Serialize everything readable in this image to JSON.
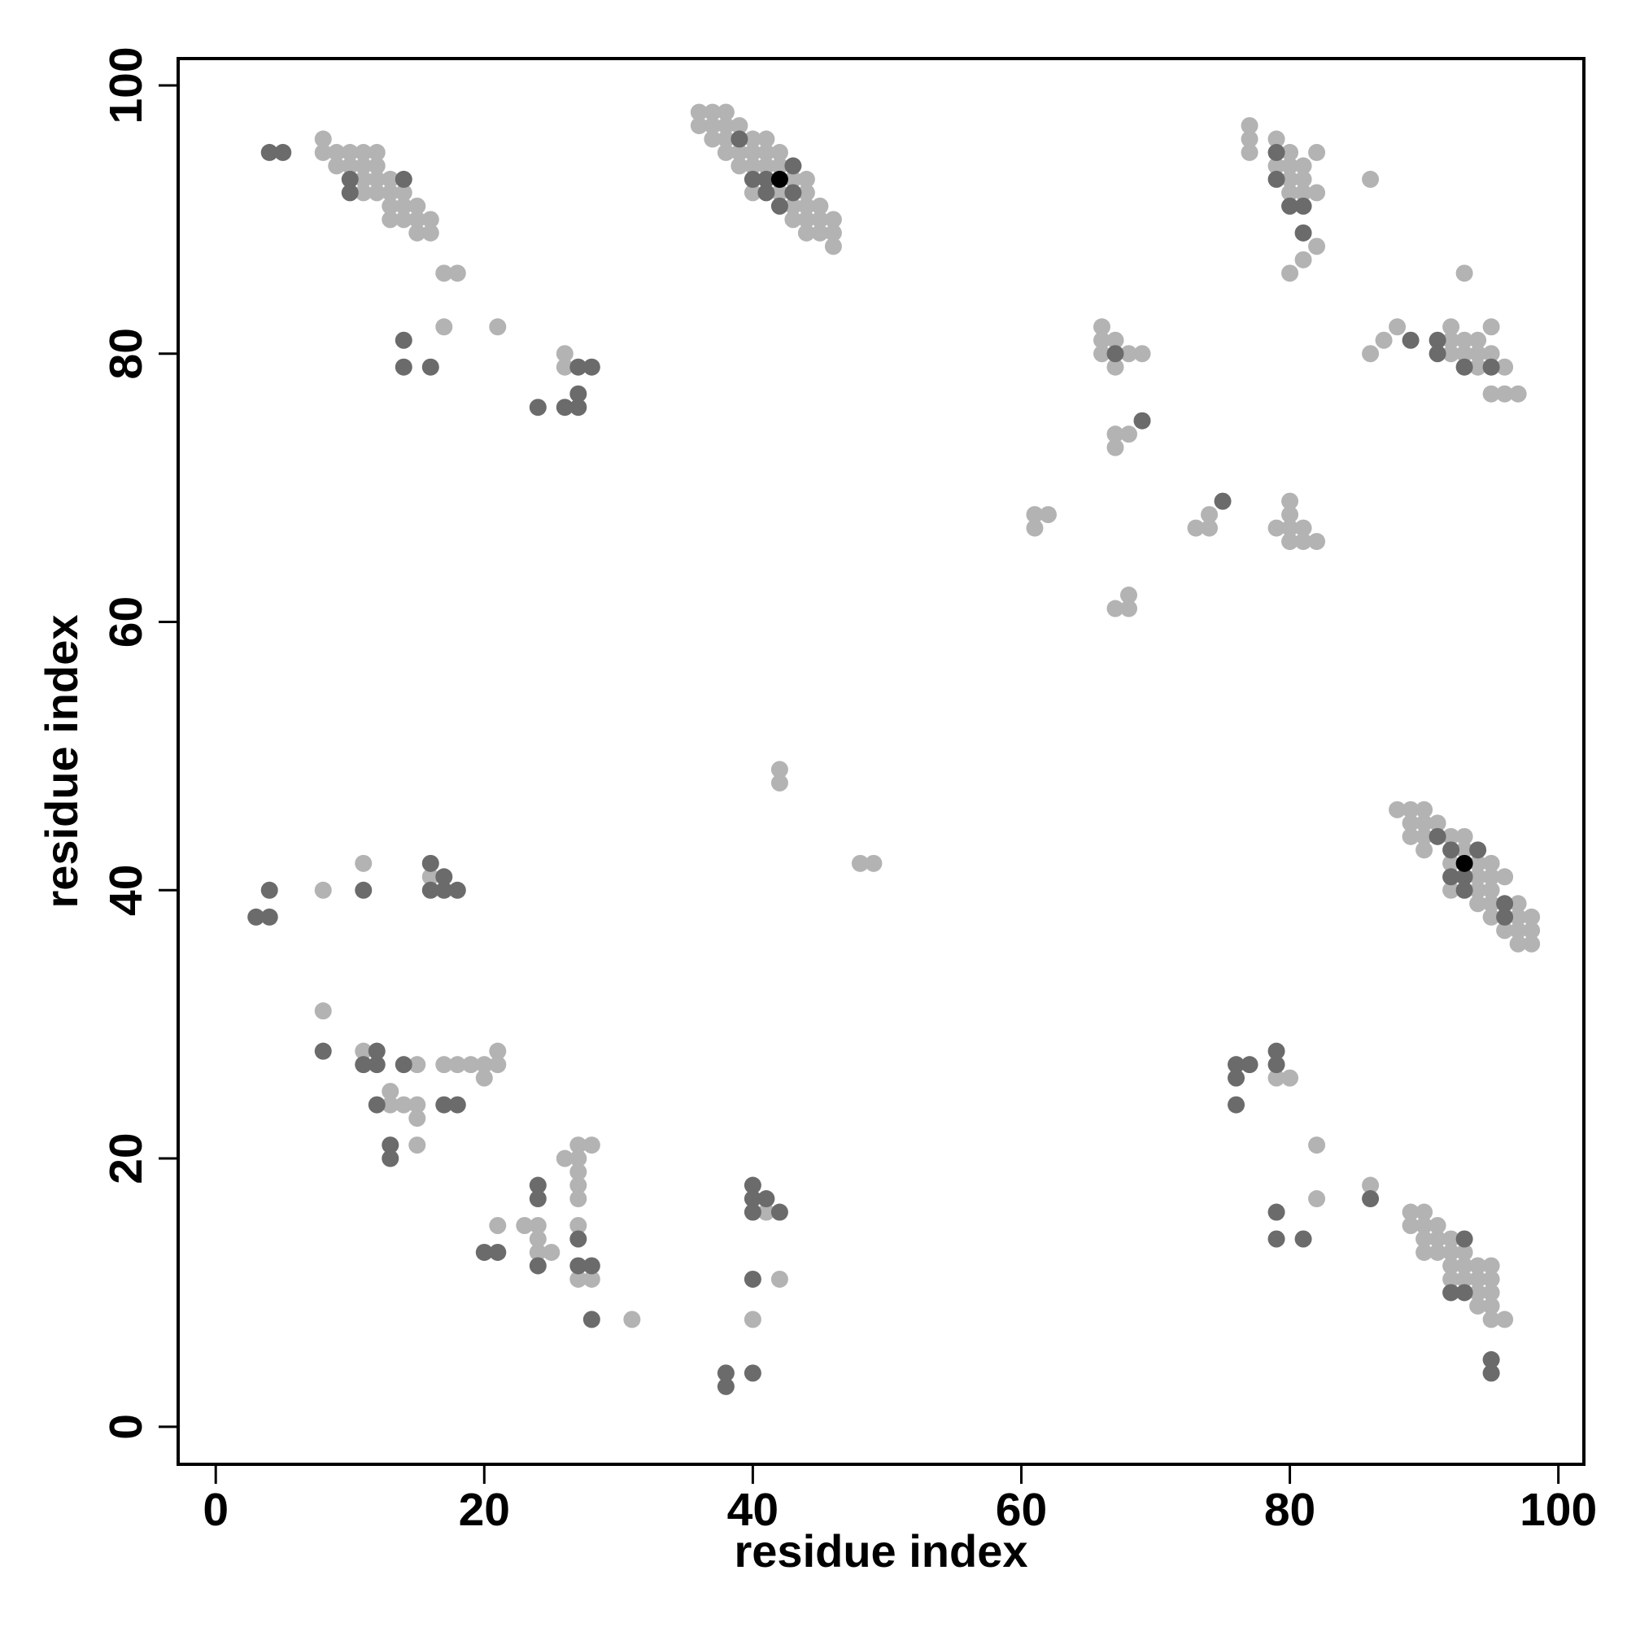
{
  "chart_data": {
    "type": "scatter",
    "x_label": "residue index",
    "y_label": "residue index",
    "xlim": [
      -2.8,
      101.9
    ],
    "ylim": [
      -2.8,
      102
    ],
    "xticks": [
      0,
      20,
      40,
      60,
      80,
      100
    ],
    "yticks": [
      0,
      20,
      40,
      60,
      80,
      100
    ],
    "grid": false,
    "series": [
      {
        "color": "#b3b3b3",
        "x": [
          8,
          8,
          9,
          10,
          11,
          12,
          9,
          10,
          11,
          12,
          11,
          12,
          13,
          11,
          12,
          13,
          14,
          13,
          14,
          15,
          13,
          14,
          15,
          16,
          15,
          16,
          17,
          18,
          17,
          21,
          26,
          26,
          36,
          37,
          38,
          36,
          37,
          38,
          39,
          37,
          38,
          40,
          41,
          38,
          39,
          40,
          41,
          42,
          39,
          40,
          41,
          42,
          43,
          44,
          40,
          42,
          44,
          43,
          44,
          45,
          43,
          44,
          45,
          46,
          44,
          45,
          46,
          46,
          77,
          77,
          77,
          79,
          80,
          80,
          81,
          79,
          80,
          81,
          80,
          81,
          82,
          82,
          81,
          80,
          82,
          86,
          93,
          86,
          87,
          88,
          92,
          92,
          93,
          94,
          92,
          93,
          94,
          95,
          95,
          94,
          96,
          95,
          96,
          97,
          66,
          66,
          67,
          66,
          68,
          69,
          67,
          67,
          68,
          67,
          61,
          62,
          61,
          73,
          74,
          74,
          79,
          80,
          80,
          80,
          81,
          80,
          81,
          82,
          67,
          68,
          68,
          42,
          42,
          48,
          49,
          88,
          89,
          90,
          89,
          90,
          91,
          89,
          90,
          92,
          93,
          90,
          93,
          92,
          94,
          95,
          94,
          95,
          96,
          92,
          94,
          95,
          94,
          95,
          97,
          95,
          97,
          98,
          96,
          97,
          98,
          97,
          98,
          8,
          11,
          16,
          8,
          15,
          17,
          18,
          19,
          20,
          21,
          21,
          20,
          13,
          13,
          14,
          15,
          15,
          15,
          11,
          26,
          27,
          28,
          27,
          27,
          27,
          27,
          21,
          23,
          24,
          27,
          24,
          24,
          25,
          27,
          28,
          31,
          41,
          42,
          40,
          79,
          80,
          82,
          82,
          86,
          89,
          90,
          89,
          90,
          91,
          90,
          91,
          92,
          90,
          91,
          92,
          93,
          92,
          93,
          94,
          95,
          92,
          93,
          94,
          95,
          94,
          95,
          94,
          95,
          95,
          96
        ],
        "values": [
          96,
          95,
          95,
          95,
          95,
          95,
          94,
          94,
          94,
          94,
          93,
          93,
          93,
          92,
          92,
          92,
          92,
          91,
          91,
          91,
          90,
          90,
          90,
          90,
          89,
          89,
          86,
          86,
          82,
          82,
          80,
          79,
          98,
          98,
          98,
          97,
          97,
          97,
          97,
          96,
          96,
          96,
          96,
          95,
          95,
          95,
          95,
          95,
          94,
          94,
          94,
          94,
          93,
          93,
          92,
          92,
          92,
          91,
          91,
          91,
          90,
          90,
          90,
          90,
          89,
          89,
          89,
          88,
          97,
          96,
          95,
          96,
          95,
          94,
          94,
          94,
          93,
          93,
          92,
          92,
          92,
          95,
          87,
          86,
          88,
          93,
          86,
          80,
          81,
          82,
          82,
          81,
          81,
          81,
          80,
          80,
          80,
          80,
          82,
          79,
          79,
          77,
          77,
          77,
          82,
          81,
          81,
          80,
          80,
          80,
          79,
          74,
          74,
          73,
          68,
          68,
          67,
          67,
          67,
          68,
          67,
          69,
          68,
          67,
          67,
          66,
          66,
          66,
          61,
          61,
          62,
          49,
          48,
          42,
          42,
          46,
          46,
          46,
          45,
          45,
          45,
          44,
          44,
          44,
          44,
          43,
          43,
          42,
          42,
          42,
          41,
          41,
          41,
          40,
          40,
          40,
          39,
          39,
          39,
          38,
          38,
          38,
          37,
          37,
          37,
          36,
          36,
          40,
          42,
          41,
          31,
          27,
          27,
          27,
          27,
          27,
          27,
          28,
          26,
          25,
          24,
          24,
          24,
          23,
          21,
          28,
          20,
          21,
          21,
          20,
          19,
          18,
          17,
          15,
          15,
          15,
          15,
          14,
          13,
          13,
          11,
          11,
          8,
          16,
          11,
          8,
          26,
          26,
          21,
          17,
          18,
          16,
          16,
          15,
          15,
          15,
          14,
          14,
          14,
          13,
          13,
          13,
          13,
          12,
          12,
          12,
          12,
          11,
          11,
          11,
          11,
          10,
          10,
          9,
          9,
          8,
          8
        ]
      },
      {
        "color": "#6b6b6b",
        "x": [
          4,
          5,
          10,
          10,
          14,
          14,
          14,
          16,
          27,
          28,
          27,
          24,
          26,
          27,
          39,
          43,
          40,
          41,
          41,
          43,
          42,
          79,
          79,
          80,
          81,
          81,
          89,
          91,
          91,
          93,
          95,
          67,
          69,
          75,
          91,
          92,
          94,
          92,
          93,
          93,
          96,
          96,
          3,
          4,
          4,
          11,
          16,
          16,
          17,
          17,
          18,
          8,
          12,
          12,
          11,
          14,
          12,
          17,
          18,
          13,
          13,
          24,
          24,
          20,
          21,
          24,
          27,
          27,
          28,
          28,
          40,
          40,
          41,
          40,
          42,
          40,
          38,
          40,
          38,
          76,
          77,
          76,
          76,
          79,
          79,
          79,
          79,
          81,
          86,
          93,
          92,
          93,
          95,
          95
        ],
        "values": [
          95,
          95,
          93,
          92,
          93,
          81,
          79,
          79,
          79,
          79,
          77,
          76,
          76,
          76,
          96,
          94,
          93,
          93,
          92,
          92,
          91,
          95,
          93,
          91,
          91,
          89,
          81,
          81,
          80,
          79,
          79,
          80,
          75,
          69,
          44,
          43,
          43,
          41,
          41,
          40,
          39,
          38,
          38,
          38,
          40,
          40,
          42,
          40,
          41,
          40,
          40,
          28,
          28,
          27,
          27,
          27,
          24,
          24,
          24,
          21,
          20,
          18,
          17,
          13,
          13,
          12,
          14,
          12,
          12,
          8,
          18,
          17,
          17,
          16,
          16,
          11,
          4,
          4,
          3,
          27,
          27,
          26,
          24,
          28,
          27,
          16,
          14,
          14,
          17,
          14,
          10,
          10,
          5,
          4
        ]
      },
      {
        "color": "#000000",
        "x": [
          42,
          93
        ],
        "values": [
          93,
          42
        ]
      }
    ]
  }
}
